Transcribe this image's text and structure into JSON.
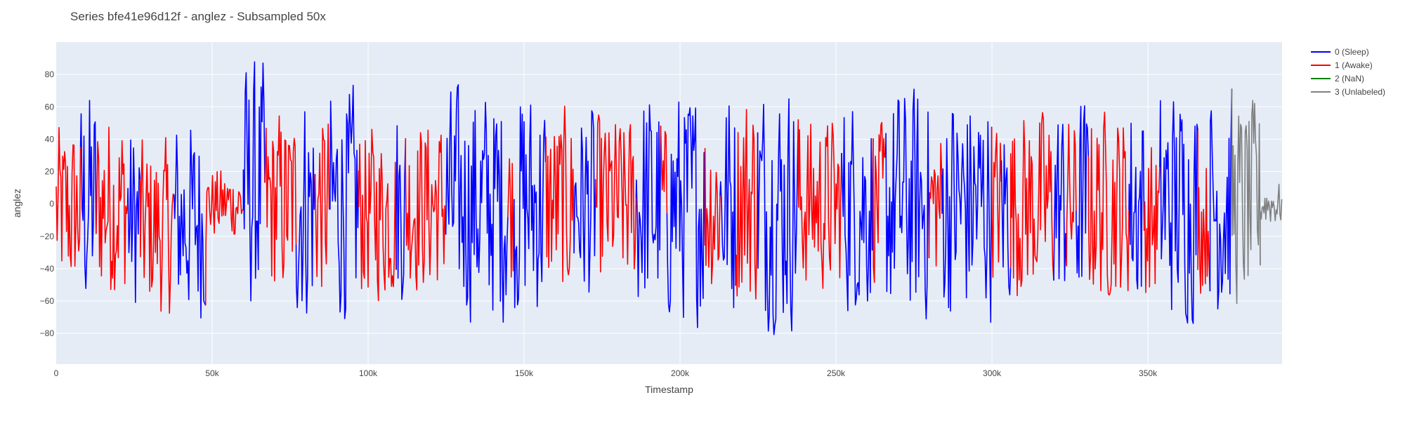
{
  "chart_data": {
    "type": "line",
    "title": "Series bfe41e96d12f - anglez - Subsampled 50x",
    "xlabel": "Timestamp",
    "ylabel": "anglez",
    "xlim": [
      0,
      393000
    ],
    "ylim": [
      -99,
      100
    ],
    "x_ticks": [
      0,
      50000,
      100000,
      150000,
      200000,
      250000,
      300000,
      350000
    ],
    "x_tick_labels": [
      "0",
      "50k",
      "100k",
      "150k",
      "200k",
      "250k",
      "300k",
      "350k"
    ],
    "y_ticks": [
      -80,
      -60,
      -40,
      -20,
      0,
      20,
      40,
      60,
      80
    ],
    "y_tick_labels": [
      "−80",
      "−60",
      "−40",
      "−20",
      "0",
      "20",
      "40",
      "60",
      "80"
    ],
    "grid": true,
    "legend_position": "top-right",
    "plot_background": "#E5ECF6",
    "sample_step": 50,
    "series": [
      {
        "name": "0 (Sleep)",
        "color": "#0000FF",
        "label_code": 0
      },
      {
        "name": "1 (Awake)",
        "color": "#FF0000",
        "label_code": 1
      },
      {
        "name": "2 (NaN)",
        "color": "#008000",
        "label_code": 2
      },
      {
        "name": "3 (Unlabeled)",
        "color": "#808080",
        "label_code": 3
      }
    ],
    "segments": [
      {
        "label": 1,
        "x_start": 0,
        "x_end": 8000,
        "amplitude": 60,
        "center": -5
      },
      {
        "label": 0,
        "x_start": 8000,
        "x_end": 13000,
        "amplitude": 80,
        "center": 0
      },
      {
        "label": 1,
        "x_start": 13000,
        "x_end": 23000,
        "amplitude": 65,
        "center": 0
      },
      {
        "label": 0,
        "x_start": 23000,
        "x_end": 27000,
        "amplitude": 65,
        "center": -10
      },
      {
        "label": 1,
        "x_start": 27000,
        "x_end": 38000,
        "amplitude": 60,
        "center": -15
      },
      {
        "label": 0,
        "x_start": 38000,
        "x_end": 48000,
        "amplitude": 70,
        "center": -10
      },
      {
        "label": 1,
        "x_start": 48000,
        "x_end": 60000,
        "amplitude": 25,
        "center": 0
      },
      {
        "label": 0,
        "x_start": 60000,
        "x_end": 67000,
        "amplitude": 85,
        "center": 10
      },
      {
        "label": 1,
        "x_start": 67000,
        "x_end": 77000,
        "amplitude": 65,
        "center": 0
      },
      {
        "label": 0,
        "x_start": 77000,
        "x_end": 83000,
        "amplitude": 80,
        "center": 0
      },
      {
        "label": 1,
        "x_start": 83000,
        "x_end": 88000,
        "amplitude": 65,
        "center": 0
      },
      {
        "label": 0,
        "x_start": 88000,
        "x_end": 97000,
        "amplitude": 80,
        "center": 0
      },
      {
        "label": 1,
        "x_start": 97000,
        "x_end": 109000,
        "amplitude": 60,
        "center": -5
      },
      {
        "label": 0,
        "x_start": 109000,
        "x_end": 112000,
        "amplitude": 70,
        "center": 0
      },
      {
        "label": 1,
        "x_start": 112000,
        "x_end": 125000,
        "amplitude": 60,
        "center": 0
      },
      {
        "label": 0,
        "x_start": 125000,
        "x_end": 145000,
        "amplitude": 80,
        "center": 0
      },
      {
        "label": 1,
        "x_start": 145000,
        "x_end": 147000,
        "amplitude": 55,
        "center": 0
      },
      {
        "label": 0,
        "x_start": 147000,
        "x_end": 157000,
        "amplitude": 80,
        "center": 0
      },
      {
        "label": 1,
        "x_start": 157000,
        "x_end": 166000,
        "amplitude": 65,
        "center": 0
      },
      {
        "label": 0,
        "x_start": 166000,
        "x_end": 173000,
        "amplitude": 70,
        "center": 0
      },
      {
        "label": 1,
        "x_start": 173000,
        "x_end": 186000,
        "amplitude": 60,
        "center": 0
      },
      {
        "label": 0,
        "x_start": 186000,
        "x_end": 194000,
        "amplitude": 80,
        "center": 0
      },
      {
        "label": 1,
        "x_start": 194000,
        "x_end": 196000,
        "amplitude": 55,
        "center": 0
      },
      {
        "label": 0,
        "x_start": 196000,
        "x_end": 208000,
        "amplitude": 80,
        "center": 0
      },
      {
        "label": 1,
        "x_start": 208000,
        "x_end": 213000,
        "amplitude": 65,
        "center": 0
      },
      {
        "label": 0,
        "x_start": 213000,
        "x_end": 218000,
        "amplitude": 80,
        "center": 0
      },
      {
        "label": 1,
        "x_start": 218000,
        "x_end": 225000,
        "amplitude": 75,
        "center": 5
      },
      {
        "label": 0,
        "x_start": 225000,
        "x_end": 238000,
        "amplitude": 85,
        "center": 0
      },
      {
        "label": 1,
        "x_start": 238000,
        "x_end": 252000,
        "amplitude": 60,
        "center": 0
      },
      {
        "label": 0,
        "x_start": 252000,
        "x_end": 262000,
        "amplitude": 75,
        "center": 0
      },
      {
        "label": 1,
        "x_start": 262000,
        "x_end": 266000,
        "amplitude": 55,
        "center": 0
      },
      {
        "label": 0,
        "x_start": 266000,
        "x_end": 280000,
        "amplitude": 80,
        "center": 0
      },
      {
        "label": 1,
        "x_start": 280000,
        "x_end": 284000,
        "amplitude": 55,
        "center": 0
      },
      {
        "label": 0,
        "x_start": 284000,
        "x_end": 300000,
        "amplitude": 80,
        "center": 0
      },
      {
        "label": 1,
        "x_start": 300000,
        "x_end": 303000,
        "amplitude": 55,
        "center": 0
      },
      {
        "label": 0,
        "x_start": 303000,
        "x_end": 306000,
        "amplitude": 70,
        "center": 0
      },
      {
        "label": 1,
        "x_start": 306000,
        "x_end": 320000,
        "amplitude": 65,
        "center": 0
      },
      {
        "label": 0,
        "x_start": 320000,
        "x_end": 324000,
        "amplitude": 70,
        "center": 0
      },
      {
        "label": 1,
        "x_start": 324000,
        "x_end": 327000,
        "amplitude": 60,
        "center": 0
      },
      {
        "label": 0,
        "x_start": 327000,
        "x_end": 331000,
        "amplitude": 75,
        "center": 0
      },
      {
        "label": 1,
        "x_start": 331000,
        "x_end": 344000,
        "amplitude": 65,
        "center": 0
      },
      {
        "label": 0,
        "x_start": 344000,
        "x_end": 349000,
        "amplitude": 75,
        "center": 0
      },
      {
        "label": 1,
        "x_start": 349000,
        "x_end": 354000,
        "amplitude": 55,
        "center": -10
      },
      {
        "label": 0,
        "x_start": 354000,
        "x_end": 366000,
        "amplitude": 80,
        "center": 0
      },
      {
        "label": 1,
        "x_start": 366000,
        "x_end": 370000,
        "amplitude": 50,
        "center": -10
      },
      {
        "label": 0,
        "x_start": 370000,
        "x_end": 377000,
        "amplitude": 80,
        "center": 0
      },
      {
        "label": 3,
        "x_start": 377000,
        "x_end": 386000,
        "amplitude": 70,
        "center": 0
      },
      {
        "label": 3,
        "x_start": 386000,
        "x_end": 393000,
        "amplitude": 15,
        "center": 0
      }
    ]
  }
}
